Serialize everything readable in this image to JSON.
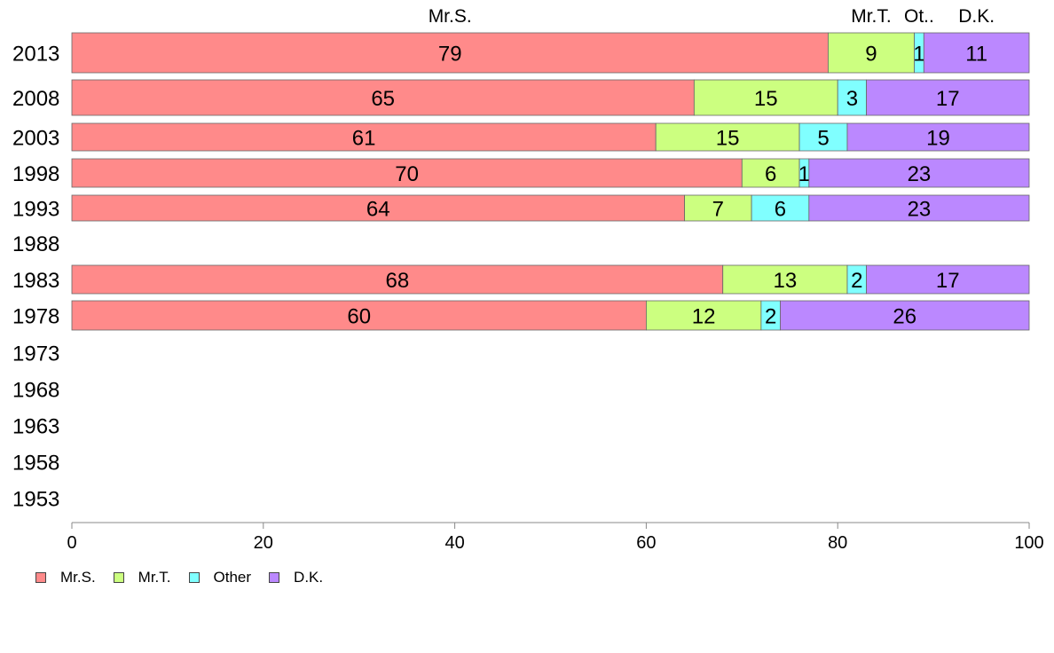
{
  "chart_data": {
    "type": "bar",
    "orientation": "horizontal",
    "stacked": true,
    "title": "",
    "xlabel": "",
    "ylabel": "",
    "xlim": [
      0,
      100
    ],
    "x_ticks": [
      0,
      20,
      40,
      60,
      80,
      100
    ],
    "categories": [
      "2013",
      "2008",
      "2003",
      "1998",
      "1993",
      "1988",
      "1983",
      "1978",
      "1973",
      "1968",
      "1963",
      "1958",
      "1953"
    ],
    "series": [
      {
        "name": "Mr.S.",
        "color": "#ff8a8a",
        "values": [
          79,
          65,
          61,
          70,
          64,
          null,
          68,
          60,
          null,
          null,
          null,
          null,
          null
        ]
      },
      {
        "name": "Mr.T.",
        "color": "#ccff80",
        "values": [
          9,
          15,
          15,
          6,
          7,
          null,
          13,
          12,
          null,
          null,
          null,
          null,
          null
        ]
      },
      {
        "name": "Other",
        "color": "#80ffff",
        "values": [
          1,
          3,
          5,
          1,
          6,
          null,
          2,
          2,
          null,
          null,
          null,
          null,
          null
        ]
      },
      {
        "name": "D.K.",
        "color": "#bb88ff",
        "values": [
          11,
          17,
          19,
          23,
          23,
          null,
          17,
          26,
          null,
          null,
          null,
          null,
          null
        ]
      }
    ],
    "column_headers": [
      "Mr.S.",
      "Mr.T.",
      "Ot..",
      "D.K."
    ],
    "grid": false,
    "legend_position": "bottom-left"
  }
}
